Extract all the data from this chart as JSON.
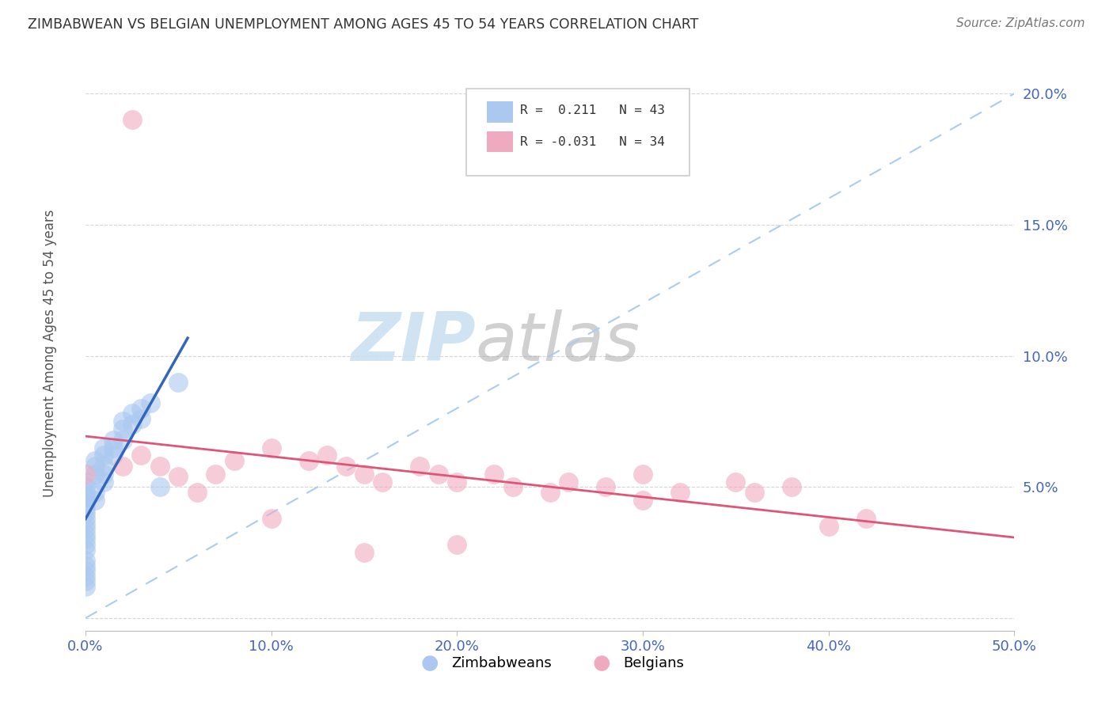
{
  "title": "ZIMBABWEAN VS BELGIAN UNEMPLOYMENT AMONG AGES 45 TO 54 YEARS CORRELATION CHART",
  "source": "Source: ZipAtlas.com",
  "ylabel": "Unemployment Among Ages 45 to 54 years",
  "watermark_zip": "ZIP",
  "watermark_atlas": "atlas",
  "xlim": [
    0.0,
    0.5
  ],
  "ylim": [
    -0.005,
    0.215
  ],
  "xticks": [
    0.0,
    0.1,
    0.2,
    0.3,
    0.4,
    0.5
  ],
  "yticks": [
    0.0,
    0.05,
    0.1,
    0.15,
    0.2
  ],
  "xticklabels": [
    "0.0%",
    "10.0%",
    "20.0%",
    "30.0%",
    "40.0%",
    "50.0%"
  ],
  "yticklabels": [
    "",
    "5.0%",
    "10.0%",
    "15.0%",
    "20.0%"
  ],
  "zimbabwe_color": "#aac8f0",
  "belgian_color": "#f0aac0",
  "zimbabwe_line_color": "#3366bb",
  "belgian_line_color": "#dd5577",
  "ref_line_color": "#aaccee",
  "background_color": "#ffffff",
  "grid_color": "#cccccc",
  "zim_r": 0.211,
  "zim_n": 43,
  "bel_r": -0.031,
  "bel_n": 34,
  "zim_x": [
    0.0,
    0.0,
    0.0,
    0.0,
    0.0,
    0.0,
    0.0,
    0.0,
    0.0,
    0.0,
    0.0,
    0.0,
    0.0,
    0.0,
    0.0,
    0.0,
    0.0,
    0.0,
    0.0,
    0.0,
    0.005,
    0.005,
    0.005,
    0.005,
    0.005,
    0.01,
    0.01,
    0.01,
    0.01,
    0.01,
    0.015,
    0.015,
    0.015,
    0.02,
    0.02,
    0.02,
    0.025,
    0.025,
    0.03,
    0.03,
    0.035,
    0.04,
    0.05
  ],
  "zim_y": [
    0.04,
    0.038,
    0.042,
    0.036,
    0.044,
    0.046,
    0.034,
    0.032,
    0.048,
    0.05,
    0.022,
    0.018,
    0.014,
    0.012,
    0.026,
    0.028,
    0.016,
    0.02,
    0.03,
    0.052,
    0.055,
    0.058,
    0.06,
    0.048,
    0.045,
    0.062,
    0.065,
    0.058,
    0.055,
    0.052,
    0.068,
    0.065,
    0.062,
    0.072,
    0.075,
    0.068,
    0.078,
    0.074,
    0.08,
    0.076,
    0.082,
    0.05,
    0.09
  ],
  "bel_x": [
    0.025,
    0.0,
    0.02,
    0.03,
    0.04,
    0.05,
    0.06,
    0.07,
    0.08,
    0.1,
    0.12,
    0.13,
    0.14,
    0.15,
    0.16,
    0.18,
    0.19,
    0.2,
    0.22,
    0.23,
    0.25,
    0.26,
    0.28,
    0.3,
    0.32,
    0.35,
    0.36,
    0.38,
    0.4,
    0.42,
    0.1,
    0.15,
    0.2,
    0.3
  ],
  "bel_y": [
    0.19,
    0.055,
    0.058,
    0.062,
    0.058,
    0.054,
    0.048,
    0.055,
    0.06,
    0.065,
    0.06,
    0.062,
    0.058,
    0.055,
    0.052,
    0.058,
    0.055,
    0.052,
    0.055,
    0.05,
    0.048,
    0.052,
    0.05,
    0.055,
    0.048,
    0.052,
    0.048,
    0.05,
    0.035,
    0.038,
    0.038,
    0.025,
    0.028,
    0.045
  ]
}
